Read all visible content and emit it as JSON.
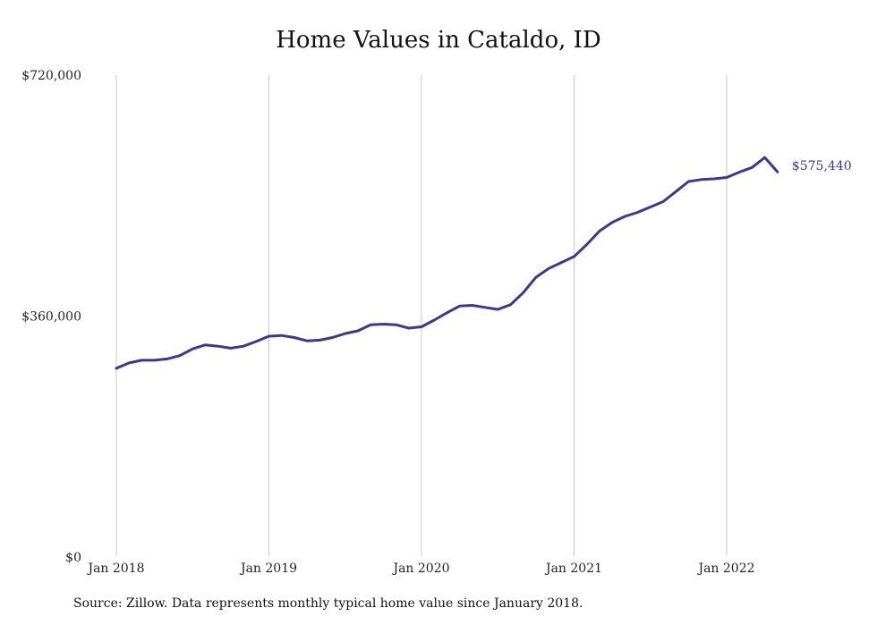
{
  "chart_data": {
    "type": "line",
    "title": "Home Values in Cataldo, ID",
    "xlabel": "",
    "ylabel": "",
    "x_ticks": [
      "Jan 2018",
      "Jan 2019",
      "Jan 2020",
      "Jan 2021",
      "Jan 2022"
    ],
    "y_ticks": [
      "$0",
      "$360,000",
      "$720,000"
    ],
    "ylim": [
      0,
      720000
    ],
    "grid": "vertical",
    "legend": "none",
    "end_label": "$575,440",
    "series": [
      {
        "color": "#3f3599",
        "x": [
          "2018-01",
          "2018-02",
          "2018-03",
          "2018-04",
          "2018-05",
          "2018-06",
          "2018-07",
          "2018-08",
          "2018-09",
          "2018-10",
          "2018-11",
          "2018-12",
          "2019-01",
          "2019-02",
          "2019-03",
          "2019-04",
          "2019-05",
          "2019-06",
          "2019-07",
          "2019-08",
          "2019-09",
          "2019-10",
          "2019-11",
          "2019-12",
          "2020-01",
          "2020-02",
          "2020-03",
          "2020-04",
          "2020-05",
          "2020-06",
          "2020-07",
          "2020-08",
          "2020-09",
          "2020-10",
          "2020-11",
          "2020-12",
          "2021-01",
          "2021-02",
          "2021-03",
          "2021-04",
          "2021-05",
          "2021-06",
          "2021-07",
          "2021-08",
          "2021-09",
          "2021-10",
          "2021-11",
          "2021-12",
          "2022-01",
          "2022-02",
          "2022-03",
          "2022-04",
          "2022-05"
        ],
        "values": [
          282000,
          290000,
          294000,
          294000,
          296000,
          301000,
          311000,
          317000,
          315000,
          312000,
          315000,
          322000,
          330000,
          331000,
          328000,
          323000,
          324000,
          328000,
          334000,
          338000,
          347000,
          348000,
          347000,
          342000,
          344000,
          354000,
          365000,
          375000,
          376000,
          373000,
          370000,
          377000,
          395000,
          418000,
          431000,
          440000,
          449000,
          467000,
          487000,
          500000,
          509000,
          515000,
          523000,
          531000,
          546000,
          561000,
          564000,
          565000,
          567000,
          575000,
          582000,
          597000,
          575440
        ]
      }
    ],
    "source": "Source: Zillow. Data represents monthly typical home value since January 2018."
  }
}
